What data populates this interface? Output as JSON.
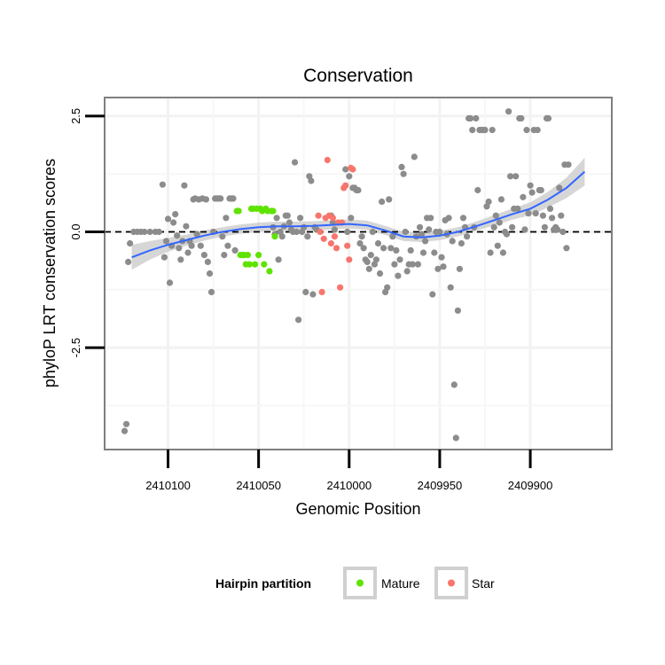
{
  "chart_data": {
    "type": "scatter",
    "title": "Conservation",
    "xlabel": "Genomic Position",
    "ylabel": "phyloP LRT conservation scores",
    "xlim": [
      2410135,
      2409855
    ],
    "ylim": [
      -4.7,
      2.9
    ],
    "x_reversed": true,
    "x_ticks": [
      2410100,
      2410050,
      2410000,
      2409950,
      2409900
    ],
    "x_tick_labels": [
      "2410100",
      "2410050",
      "2410000",
      "2409950",
      "2409900"
    ],
    "y_ticks": [
      2.5,
      0.0,
      -2.5
    ],
    "y_tick_labels": [
      "2.5",
      "0.0",
      "-2.5"
    ],
    "reference_line": {
      "y": 0,
      "style": "dashed",
      "color": "#000000"
    },
    "grid": true,
    "legend": {
      "title": "Hairpin partition",
      "position": "bottom",
      "entries": [
        {
          "label": "Mature",
          "color": "#5fe300"
        },
        {
          "label": "Star",
          "color": "#f8766d"
        }
      ]
    },
    "colors": {
      "other": "#8c8c8c",
      "mature": "#5fe300",
      "star": "#f8766d",
      "smooth": "#3366ff",
      "band": "#cfcfcf"
    },
    "smooth": {
      "x": [
        2410120,
        2410110,
        2410100,
        2410090,
        2410080,
        2410070,
        2410060,
        2410050,
        2410040,
        2410030,
        2410020,
        2410010,
        2410000,
        2409990,
        2409980,
        2409970,
        2409960,
        2409950,
        2409940,
        2409930,
        2409920,
        2409910,
        2409900,
        2409890,
        2409880,
        2409870
      ],
      "y": [
        -0.55,
        -0.4,
        -0.28,
        -0.18,
        -0.08,
        0.0,
        0.06,
        0.1,
        0.12,
        0.12,
        0.13,
        0.15,
        0.17,
        0.14,
        0.03,
        -0.1,
        -0.12,
        -0.08,
        0.0,
        0.12,
        0.25,
        0.38,
        0.5,
        0.7,
        0.95,
        1.3
      ],
      "ci_half": [
        0.27,
        0.2,
        0.15,
        0.12,
        0.11,
        0.1,
        0.1,
        0.1,
        0.1,
        0.1,
        0.1,
        0.1,
        0.1,
        0.1,
        0.1,
        0.1,
        0.1,
        0.1,
        0.1,
        0.1,
        0.11,
        0.12,
        0.14,
        0.17,
        0.22,
        0.3
      ]
    },
    "series": [
      {
        "name": "Other",
        "color": "#8c8c8c",
        "points": [
          [
            2410124,
            -4.3
          ],
          [
            2410123,
            -4.15
          ],
          [
            2410122,
            -0.65
          ],
          [
            2410121,
            -0.25
          ],
          [
            2410119,
            0.0
          ],
          [
            2410117,
            0.0
          ],
          [
            2410115,
            0.0
          ],
          [
            2410113,
            0.0
          ],
          [
            2410110,
            0.0
          ],
          [
            2410107,
            0.0
          ],
          [
            2410105,
            0.0
          ],
          [
            2410103,
            1.02
          ],
          [
            2410102,
            -0.55
          ],
          [
            2410101,
            -0.2
          ],
          [
            2410100,
            0.28
          ],
          [
            2410099,
            -1.1
          ],
          [
            2410098,
            -0.3
          ],
          [
            2410097,
            0.2
          ],
          [
            2410096,
            0.38
          ],
          [
            2410095,
            -0.08
          ],
          [
            2410094,
            -0.35
          ],
          [
            2410093,
            -0.6
          ],
          [
            2410092,
            -0.2
          ],
          [
            2410091,
            1.0
          ],
          [
            2410090,
            0.12
          ],
          [
            2410089,
            -0.45
          ],
          [
            2410088,
            -0.2
          ],
          [
            2410087,
            -0.3
          ],
          [
            2410086,
            0.7
          ],
          [
            2410085,
            0.72
          ],
          [
            2410084,
            -0.05
          ],
          [
            2410083,
            0.7
          ],
          [
            2410082,
            -0.3
          ],
          [
            2410081,
            0.72
          ],
          [
            2410080,
            -0.5
          ],
          [
            2410079,
            0.7
          ],
          [
            2410078,
            -0.65
          ],
          [
            2410077,
            -0.9
          ],
          [
            2410076,
            -1.3
          ],
          [
            2410075,
            0.0
          ],
          [
            2410074,
            0.72
          ],
          [
            2410073,
            0.72
          ],
          [
            2410072,
            0.72
          ],
          [
            2410071,
            0.72
          ],
          [
            2410070,
            -0.1
          ],
          [
            2410069,
            -0.5
          ],
          [
            2410068,
            0.3
          ],
          [
            2410067,
            -0.3
          ],
          [
            2410066,
            0.72
          ],
          [
            2410065,
            0.72
          ],
          [
            2410064,
            0.72
          ],
          [
            2410063,
            -0.4
          ],
          [
            2410042,
            0.1
          ],
          [
            2410041,
            -0.05
          ],
          [
            2410040,
            0.3
          ],
          [
            2410039,
            -0.6
          ],
          [
            2410038,
            0.0
          ],
          [
            2410037,
            -0.1
          ],
          [
            2410036,
            0.12
          ],
          [
            2410035,
            0.35
          ],
          [
            2410034,
            0.35
          ],
          [
            2410033,
            0.2
          ],
          [
            2410032,
            0.05
          ],
          [
            2410031,
            0.0
          ],
          [
            2410030,
            1.5
          ],
          [
            2410029,
            0.0
          ],
          [
            2410028,
            -1.9
          ],
          [
            2410027,
            0.3
          ],
          [
            2410026,
            0.0
          ],
          [
            2410025,
            0.1
          ],
          [
            2410024,
            -1.3
          ],
          [
            2410023,
            -0.1
          ],
          [
            2410022,
            1.2
          ],
          [
            2410021,
            1.1
          ],
          [
            2410020,
            -1.35
          ],
          [
            2410019,
            0.1
          ],
          [
            2410018,
            0.05
          ],
          [
            2410010,
            0.35
          ],
          [
            2410009,
            0.2
          ],
          [
            2410008,
            0.05
          ],
          [
            2410002,
            1.35
          ],
          [
            2410001,
            0.0
          ],
          [
            2410000,
            1.2
          ],
          [
            2409999,
            0.3
          ],
          [
            2409998,
            0.95
          ],
          [
            2409997,
            0.95
          ],
          [
            2409996,
            0.9
          ],
          [
            2409995,
            0.9
          ],
          [
            2409994,
            -0.25
          ],
          [
            2409993,
            -0.1
          ],
          [
            2409992,
            -0.35
          ],
          [
            2409991,
            -0.6
          ],
          [
            2409990,
            -0.65
          ],
          [
            2409989,
            -0.8
          ],
          [
            2409988,
            -0.5
          ],
          [
            2409987,
            0.0
          ],
          [
            2409986,
            -0.7
          ],
          [
            2409985,
            -0.6
          ],
          [
            2409984,
            -0.25
          ],
          [
            2409983,
            -0.9
          ],
          [
            2409982,
            0.65
          ],
          [
            2409981,
            -0.35
          ],
          [
            2409980,
            -1.3
          ],
          [
            2409979,
            -1.2
          ],
          [
            2409978,
            0.7
          ],
          [
            2409977,
            -0.35
          ],
          [
            2409976,
            -0.1
          ],
          [
            2409975,
            -0.7
          ],
          [
            2409974,
            -0.4
          ],
          [
            2409973,
            -0.95
          ],
          [
            2409972,
            -0.6
          ],
          [
            2409971,
            1.4
          ],
          [
            2409970,
            1.25
          ],
          [
            2409969,
            0.0
          ],
          [
            2409968,
            -0.85
          ],
          [
            2409967,
            -0.7
          ],
          [
            2409966,
            -0.4
          ],
          [
            2409965,
            -0.7
          ],
          [
            2409964,
            1.62
          ],
          [
            2409963,
            -0.1
          ],
          [
            2409962,
            -0.7
          ],
          [
            2409961,
            0.1
          ],
          [
            2409960,
            -0.05
          ],
          [
            2409959,
            -0.45
          ],
          [
            2409958,
            -0.2
          ],
          [
            2409957,
            0.3
          ],
          [
            2409956,
            0.05
          ],
          [
            2409955,
            0.3
          ],
          [
            2409954,
            -1.35
          ],
          [
            2409953,
            -0.45
          ],
          [
            2409952,
            0.0
          ],
          [
            2409951,
            -0.8
          ],
          [
            2409950,
            0.0
          ],
          [
            2409949,
            -0.55
          ],
          [
            2409948,
            -0.75
          ],
          [
            2409947,
            0.25
          ],
          [
            2409946,
            -0.05
          ],
          [
            2409945,
            0.3
          ],
          [
            2409944,
            -1.2
          ],
          [
            2409943,
            -0.2
          ],
          [
            2409942,
            -3.3
          ],
          [
            2409941,
            -4.45
          ],
          [
            2409940,
            -1.7
          ],
          [
            2409939,
            -0.8
          ],
          [
            2409938,
            -0.25
          ],
          [
            2409937,
            0.3
          ],
          [
            2409936,
            0.1
          ],
          [
            2409935,
            -0.1
          ],
          [
            2409934,
            2.45
          ],
          [
            2409933,
            2.45
          ],
          [
            2409932,
            2.2
          ],
          [
            2409931,
            0.1
          ],
          [
            2409930,
            2.45
          ],
          [
            2409929,
            0.9
          ],
          [
            2409928,
            2.2
          ],
          [
            2409927,
            2.2
          ],
          [
            2409926,
            2.2
          ],
          [
            2409925,
            2.2
          ],
          [
            2409924,
            0.55
          ],
          [
            2409923,
            0.65
          ],
          [
            2409922,
            -0.45
          ],
          [
            2409921,
            2.2
          ],
          [
            2409920,
            0.1
          ],
          [
            2409919,
            0.35
          ],
          [
            2409918,
            -0.3
          ],
          [
            2409917,
            0.2
          ],
          [
            2409916,
            0.7
          ],
          [
            2409915,
            -0.45
          ],
          [
            2409914,
            0.0
          ],
          [
            2409913,
            -0.05
          ],
          [
            2409912,
            2.6
          ],
          [
            2409911,
            1.2
          ],
          [
            2409910,
            0.1
          ],
          [
            2409909,
            0.5
          ],
          [
            2409908,
            1.2
          ],
          [
            2409907,
            0.5
          ],
          [
            2409906,
            2.45
          ],
          [
            2409905,
            2.45
          ],
          [
            2409904,
            0.75
          ],
          [
            2409903,
            0.05
          ],
          [
            2409902,
            2.2
          ],
          [
            2409901,
            0.4
          ],
          [
            2409900,
            1.0
          ],
          [
            2409899,
            0.85
          ],
          [
            2409898,
            2.2
          ],
          [
            2409897,
            0.4
          ],
          [
            2409896,
            2.2
          ],
          [
            2409895,
            0.9
          ],
          [
            2409894,
            0.9
          ],
          [
            2409893,
            0.35
          ],
          [
            2409892,
            0.1
          ],
          [
            2409891,
            2.45
          ],
          [
            2409890,
            2.45
          ],
          [
            2409889,
            0.5
          ],
          [
            2409888,
            0.3
          ],
          [
            2409887,
            0.05
          ],
          [
            2409886,
            0.1
          ],
          [
            2409885,
            0.05
          ],
          [
            2409884,
            0.95
          ],
          [
            2409883,
            0.35
          ],
          [
            2409882,
            0.0
          ],
          [
            2409881,
            1.45
          ],
          [
            2409880,
            -0.35
          ],
          [
            2409879,
            1.45
          ]
        ]
      },
      {
        "name": "Mature",
        "color": "#5fe300",
        "points": [
          [
            2410062,
            0.45
          ],
          [
            2410061,
            0.45
          ],
          [
            2410060,
            -0.5
          ],
          [
            2410059,
            -0.5
          ],
          [
            2410058,
            -0.5
          ],
          [
            2410057,
            -0.7
          ],
          [
            2410056,
            -0.5
          ],
          [
            2410055,
            -0.7
          ],
          [
            2410054,
            0.5
          ],
          [
            2410053,
            0.5
          ],
          [
            2410052,
            -0.7
          ],
          [
            2410051,
            0.5
          ],
          [
            2410050,
            -0.5
          ],
          [
            2410049,
            0.5
          ],
          [
            2410048,
            0.45
          ],
          [
            2410047,
            -0.7
          ],
          [
            2410046,
            0.5
          ],
          [
            2410045,
            0.45
          ],
          [
            2410044,
            -0.85
          ],
          [
            2410043,
            0.45
          ],
          [
            2410042,
            0.45
          ],
          [
            2410041,
            -0.1
          ]
        ]
      },
      {
        "name": "Star",
        "color": "#f8766d",
        "points": [
          [
            2410017,
            0.35
          ],
          [
            2410016,
            0.0
          ],
          [
            2410015,
            -1.3
          ],
          [
            2410014,
            -0.15
          ],
          [
            2410013,
            0.3
          ],
          [
            2410012,
            1.55
          ],
          [
            2410011,
            0.35
          ],
          [
            2410010,
            -0.25
          ],
          [
            2410009,
            0.3
          ],
          [
            2410008,
            -0.1
          ],
          [
            2410007,
            -0.35
          ],
          [
            2410006,
            0.2
          ],
          [
            2410005,
            -1.2
          ],
          [
            2410004,
            0.2
          ],
          [
            2410003,
            0.95
          ],
          [
            2410002,
            1.0
          ],
          [
            2410001,
            -0.3
          ],
          [
            2410000,
            -0.6
          ],
          [
            2409999,
            1.38
          ],
          [
            2409998,
            1.35
          ]
        ]
      }
    ]
  }
}
